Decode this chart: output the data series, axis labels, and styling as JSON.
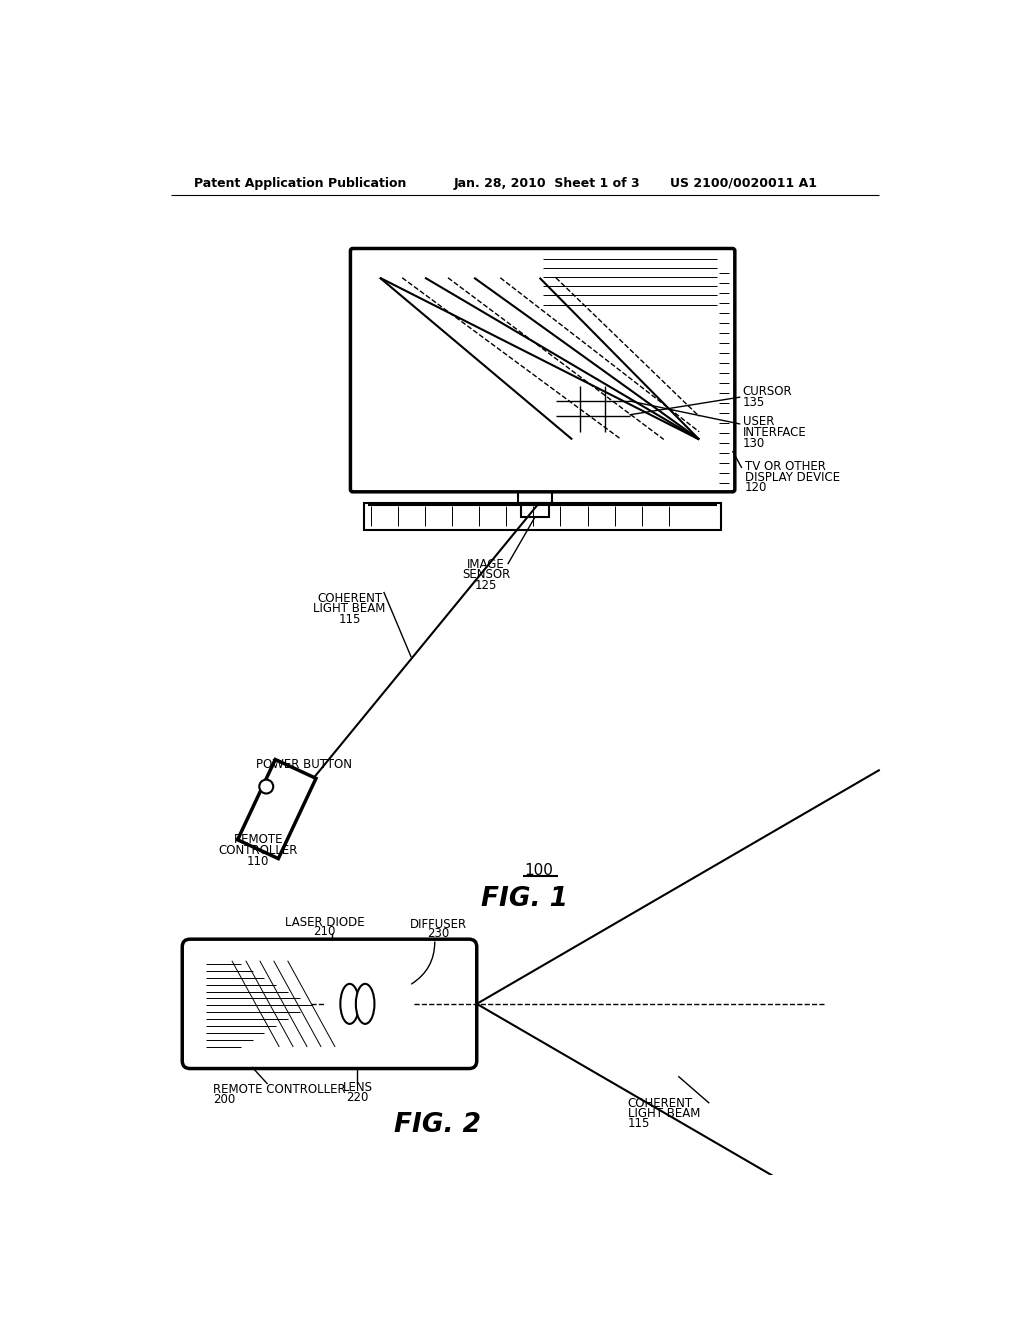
{
  "header_left": "Patent Application Publication",
  "header_center": "Jan. 28, 2010  Sheet 1 of 3",
  "header_right": "US 2100/0020011 A1",
  "fig1_label": "FIG. 1",
  "fig2_label": "FIG. 2",
  "system_label": "100",
  "bg_color": "#ffffff",
  "line_color": "#000000",
  "labels": {
    "cursor": "CURSOR\n135",
    "user_interface": "USER\nINTERFACE\n130",
    "image_sensor": "IMAGE\nSENSOR\n125",
    "tv": "TV OR OTHER\nDISPLAY DEVICE\n120",
    "power_button": "POWER BUTTON",
    "coherent_light_beam": "COHERENT\nLIGHT BEAM\n115",
    "remote_controller": "REMOTE\nCONTROLLER\n110",
    "laser_diode": "LASER DIODE\n210",
    "diffuser": "DIFFUSER\n230",
    "lens": "LENS\n220",
    "coherent_light_beam2": "COHERENT\nLIGHT BEAM\n115",
    "remote_controller2": "REMOTE CONTROLLER\n200"
  }
}
